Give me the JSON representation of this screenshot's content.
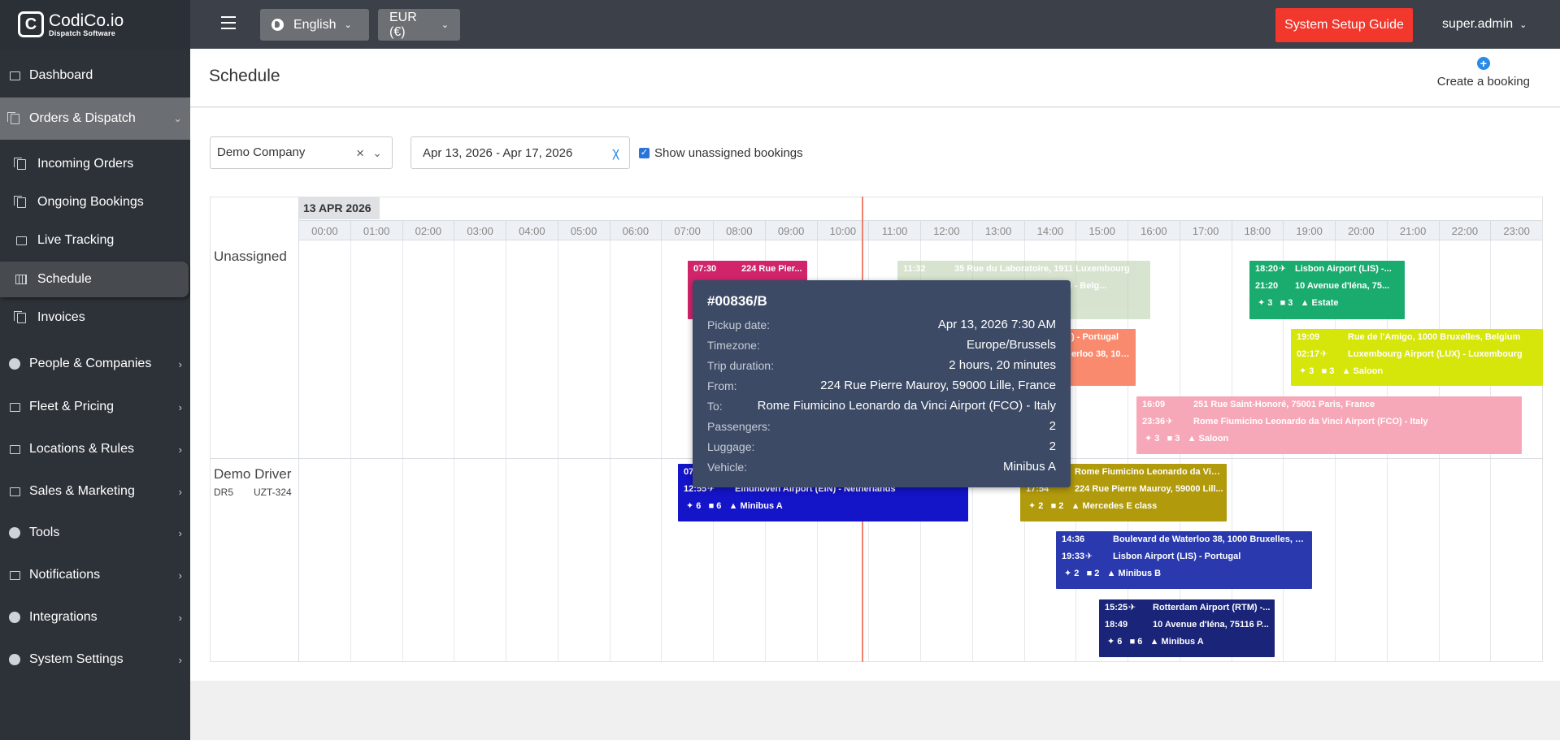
{
  "topbar": {
    "brand": "CodiCo.io",
    "brand_sub": "Dispatch Software",
    "language": "English",
    "currency": "EUR (€)",
    "setup_guide": "System Setup Guide",
    "user": "super.admin"
  },
  "sidebar": {
    "items": [
      {
        "label": "Dashboard"
      },
      {
        "label": "Orders & Dispatch"
      },
      {
        "label": "Incoming Orders"
      },
      {
        "label": "Ongoing Bookings"
      },
      {
        "label": "Live Tracking"
      },
      {
        "label": "Schedule"
      },
      {
        "label": "Invoices"
      },
      {
        "label": "People & Companies"
      },
      {
        "label": "Fleet & Pricing"
      },
      {
        "label": "Locations & Rules"
      },
      {
        "label": "Sales & Marketing"
      },
      {
        "label": "Tools"
      },
      {
        "label": "Notifications"
      },
      {
        "label": "Integrations"
      },
      {
        "label": "System Settings"
      }
    ]
  },
  "header": {
    "title": "Schedule",
    "create_booking": "Create a booking"
  },
  "filters": {
    "company": "Demo Company",
    "date_range": "Apr 13, 2026 - Apr 17, 2026",
    "show_unassigned": "Show unassigned bookings"
  },
  "timeline": {
    "date": "13 APR 2026",
    "hours": [
      "00:00",
      "01:00",
      "02:00",
      "03:00",
      "04:00",
      "05:00",
      "06:00",
      "07:00",
      "08:00",
      "09:00",
      "10:00",
      "11:00",
      "12:00",
      "13:00",
      "14:00",
      "15:00",
      "16:00",
      "17:00",
      "18:00",
      "19:00",
      "20:00",
      "21:00",
      "22:00",
      "23:00"
    ],
    "resources": [
      {
        "name": "Unassigned"
      },
      {
        "name": "Demo Driver",
        "code": "DR5",
        "plate": "UZT-324"
      }
    ],
    "events": {
      "e1": {
        "t1": "07:30",
        "a1": "224 Rue Pier...",
        "color": "#d1246b"
      },
      "e2": {
        "t1": "11:32",
        "a1": "35 Rue du Laboratoire, 1911 Luxembourg",
        "a2": "ort (CRL) - Belg...",
        "color": "#b7cda7"
      },
      "e3": {
        "a1": ") - Portugal",
        "a2": "erloo 38, 100...",
        "color": "#f98a6d"
      },
      "e4": {
        "t1": "18:20",
        "a1": "Lisbon Airport (LIS) -...",
        "t2": "21:20",
        "a2": "10 Avenue d'Iéna, 75...",
        "pax": "3",
        "lug": "3",
        "veh": "Estate",
        "color": "#1aab6f"
      },
      "e5": {
        "t1": "19:09",
        "a1": "Rue de l'Amigo, 1000 Bruxelles, Belgium",
        "t2": "02:17",
        "a2": "Luxembourg Airport (LUX) - Luxembourg",
        "pax": "3",
        "lug": "3",
        "veh": "Saloon",
        "color": "#d7e60a"
      },
      "e6": {
        "t1": "16:09",
        "a1": "251 Rue Saint-Honoré, 75001 Paris, France",
        "t2": "23:36",
        "a2": "Rome Fiumicino Leonardo da Vinci Airport (FCO) - Italy",
        "pax": "3",
        "lug": "3",
        "veh": "Saloon",
        "color": "#f7a8b8"
      },
      "e7": {
        "t1": "07",
        "t2": "12:55",
        "a2": "Eindhoven Airport (EIN) - Netherlands",
        "pax": "6",
        "lug": "6",
        "veh": "Minibus A",
        "color": "#1414c8"
      },
      "e8": {
        "a1": "Rome Fiumicino Leonardo da Vin...",
        "t2": "17:54",
        "a2": "224 Rue Pierre Mauroy, 59000 Lill...",
        "pax": "2",
        "lug": "2",
        "veh": "Mercedes E class",
        "color": "#b19a0c"
      },
      "e9": {
        "t1": "14:36",
        "a1": "Boulevard de Waterloo 38, 1000 Bruxelles, Bel...",
        "t2": "19:33",
        "a2": "Lisbon Airport (LIS) - Portugal",
        "pax": "2",
        "lug": "2",
        "veh": "Minibus B",
        "color": "#2a3aae"
      },
      "e10": {
        "t1": "15:25",
        "a1": "Rotterdam Airport (RTM) -...",
        "t2": "18:49",
        "a2": "10 Avenue d'Iéna, 75116 P...",
        "pax": "6",
        "lug": "6",
        "veh": "Minibus A",
        "color": "#1a2478"
      }
    }
  },
  "tooltip": {
    "title": "#00836/B",
    "rows": [
      {
        "k": "Pickup date:",
        "v": "Apr 13, 2026 7:30 AM"
      },
      {
        "k": "Timezone:",
        "v": "Europe/Brussels"
      },
      {
        "k": "Trip duration:",
        "v": "2 hours, 20 minutes"
      },
      {
        "k": "From:",
        "v": "224 Rue Pierre Mauroy, 59000 Lille, France"
      },
      {
        "k": "To:",
        "v": "Rome Fiumicino Leonardo da Vinci Airport (FCO) - Italy"
      },
      {
        "k": "Passengers:",
        "v": "2"
      },
      {
        "k": "Luggage:",
        "v": "2"
      },
      {
        "k": "Vehicle:",
        "v": "Minibus A"
      }
    ]
  },
  "colors": {
    "topbar": "#3b4049",
    "sidebar": "#2d3238",
    "setup_button": "#f2372d",
    "now_line": "#f0806e",
    "tooltip": "#3c4a65"
  }
}
